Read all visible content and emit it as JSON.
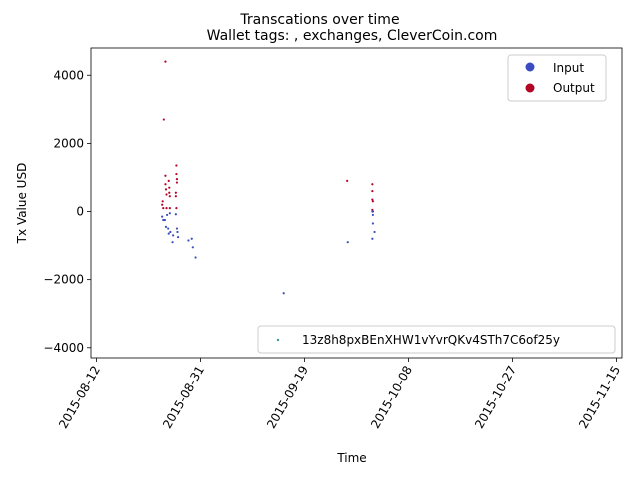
{
  "chart_data": {
    "type": "scatter",
    "suptitle": "Transcations over time",
    "title": "Wallet tags: , exchanges, CleverCoin.com",
    "xlabel": "Time",
    "ylabel": "Tx Value USD",
    "x_date_range": [
      "2015-08-11",
      "2015-11-16"
    ],
    "ylim": [
      -4300,
      4800
    ],
    "x_ticks": [
      {
        "date": "2015-08-12",
        "label": "2015-08-12"
      },
      {
        "date": "2015-08-31",
        "label": "2015-08-31"
      },
      {
        "date": "2015-09-19",
        "label": "2015-09-19"
      },
      {
        "date": "2015-10-08",
        "label": "2015-10-08"
      },
      {
        "date": "2015-10-27",
        "label": "2015-10-27"
      },
      {
        "date": "2015-11-15",
        "label": "2015-11-15"
      }
    ],
    "y_ticks": [
      {
        "value": 4000,
        "label": "4000"
      },
      {
        "value": 2000,
        "label": "2000"
      },
      {
        "value": 0,
        "label": "0"
      },
      {
        "value": -2000,
        "label": "−2000"
      },
      {
        "value": -4000,
        "label": "−4000"
      }
    ],
    "legend_series": {
      "position": "top-right",
      "entries": [
        {
          "label": "Input",
          "color": "#3b4cc0"
        },
        {
          "label": "Output",
          "color": "#b40426"
        }
      ]
    },
    "legend_wallet": {
      "position": "bottom-right",
      "label": "13z8h8pxBEnXHW1vYvrQKv4STh7C6of25y",
      "color": "#3a9a9a"
    },
    "series": [
      {
        "name": "Output",
        "color": "#b40426",
        "points": [
          {
            "x": 13.0,
            "y": 200
          },
          {
            "x": 13.1,
            "y": 300
          },
          {
            "x": 13.2,
            "y": 100
          },
          {
            "x": 13.3,
            "y": 2700
          },
          {
            "x": 13.6,
            "y": 4400
          },
          {
            "x": 13.6,
            "y": 1050
          },
          {
            "x": 13.6,
            "y": 800
          },
          {
            "x": 13.7,
            "y": 650
          },
          {
            "x": 13.8,
            "y": 500
          },
          {
            "x": 13.8,
            "y": 100
          },
          {
            "x": 14.2,
            "y": 900
          },
          {
            "x": 14.3,
            "y": 700
          },
          {
            "x": 14.3,
            "y": 550
          },
          {
            "x": 14.4,
            "y": 450
          },
          {
            "x": 14.4,
            "y": 100
          },
          {
            "x": 15.6,
            "y": 1350
          },
          {
            "x": 15.6,
            "y": 1100
          },
          {
            "x": 15.7,
            "y": 950
          },
          {
            "x": 15.7,
            "y": 850
          },
          {
            "x": 15.5,
            "y": 550
          },
          {
            "x": 15.5,
            "y": 450
          },
          {
            "x": 15.6,
            "y": 100
          },
          {
            "x": 46.8,
            "y": 900
          },
          {
            "x": 51.4,
            "y": 800
          },
          {
            "x": 51.4,
            "y": 600
          },
          {
            "x": 51.4,
            "y": 350
          },
          {
            "x": 51.5,
            "y": 300
          },
          {
            "x": 51.4,
            "y": 50
          },
          {
            "x": 51.5,
            "y": 0
          }
        ]
      },
      {
        "name": "Input",
        "color": "#3b4cc0",
        "points": [
          {
            "x": 13.0,
            "y": -150
          },
          {
            "x": 13.2,
            "y": -250
          },
          {
            "x": 13.5,
            "y": -250
          },
          {
            "x": 13.7,
            "y": -450
          },
          {
            "x": 13.9,
            "y": -100
          },
          {
            "x": 14.1,
            "y": -500
          },
          {
            "x": 14.2,
            "y": -650
          },
          {
            "x": 14.4,
            "y": -50
          },
          {
            "x": 14.5,
            "y": -600
          },
          {
            "x": 14.9,
            "y": -900
          },
          {
            "x": 15.0,
            "y": -700
          },
          {
            "x": 15.5,
            "y": -80
          },
          {
            "x": 15.7,
            "y": -500
          },
          {
            "x": 15.8,
            "y": -600
          },
          {
            "x": 15.9,
            "y": -750
          },
          {
            "x": 17.8,
            "y": -850
          },
          {
            "x": 18.4,
            "y": -800
          },
          {
            "x": 18.6,
            "y": -1050
          },
          {
            "x": 19.1,
            "y": -1350
          },
          {
            "x": 35.2,
            "y": -2400
          },
          {
            "x": 46.9,
            "y": -900
          },
          {
            "x": 51.4,
            "y": 0
          },
          {
            "x": 51.5,
            "y": -100
          },
          {
            "x": 51.5,
            "y": -350
          },
          {
            "x": 51.4,
            "y": -800
          },
          {
            "x": 51.8,
            "y": -600
          }
        ]
      }
    ]
  }
}
